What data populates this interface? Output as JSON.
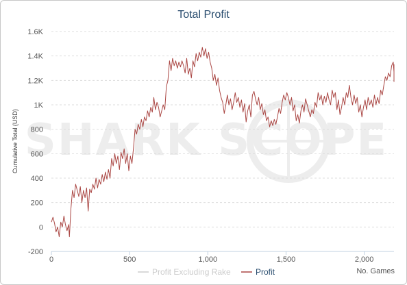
{
  "chart_data": {
    "type": "line",
    "title": "Total Profit",
    "xlabel": "No. Games",
    "ylabel": "Cumulative Total (USD)",
    "xlim": [
      0,
      2190
    ],
    "ylim": [
      -200,
      1600
    ],
    "x_ticks": [
      {
        "value": 0,
        "label": "0"
      },
      {
        "value": 500,
        "label": "500"
      },
      {
        "value": 1000,
        "label": "1,000"
      },
      {
        "value": 1500,
        "label": "1,500"
      },
      {
        "value": 2000,
        "label": "2,000"
      }
    ],
    "y_ticks": [
      {
        "value": -200,
        "label": "-200"
      },
      {
        "value": 0,
        "label": "0"
      },
      {
        "value": 200,
        "label": "200"
      },
      {
        "value": 400,
        "label": "400"
      },
      {
        "value": 600,
        "label": "600"
      },
      {
        "value": 800,
        "label": "800"
      },
      {
        "value": 1000,
        "label": "1K"
      },
      {
        "value": 1200,
        "label": "1.2K"
      },
      {
        "value": 1400,
        "label": "1.4K"
      },
      {
        "value": 1600,
        "label": "1.6K"
      }
    ],
    "grid": "horizontal dashed",
    "legend_position": "bottom-center",
    "watermark": "SHARK SCOPE",
    "series": [
      {
        "name": "Profit Excluding Rake",
        "color": "#cccccc",
        "visible": false,
        "points": []
      },
      {
        "name": "Profit",
        "color": "#aa4643",
        "visible": true,
        "points": [
          [
            0,
            40
          ],
          [
            10,
            80
          ],
          [
            20,
            30
          ],
          [
            30,
            -40
          ],
          [
            40,
            0
          ],
          [
            50,
            -80
          ],
          [
            60,
            40
          ],
          [
            70,
            0
          ],
          [
            80,
            90
          ],
          [
            90,
            20
          ],
          [
            100,
            -30
          ],
          [
            110,
            20
          ],
          [
            115,
            -80
          ],
          [
            125,
            150
          ],
          [
            135,
            300
          ],
          [
            145,
            240
          ],
          [
            155,
            350
          ],
          [
            165,
            300
          ],
          [
            175,
            250
          ],
          [
            185,
            330
          ],
          [
            195,
            200
          ],
          [
            205,
            300
          ],
          [
            215,
            240
          ],
          [
            225,
            320
          ],
          [
            235,
            130
          ],
          [
            245,
            310
          ],
          [
            255,
            280
          ],
          [
            265,
            350
          ],
          [
            275,
            310
          ],
          [
            285,
            400
          ],
          [
            295,
            320
          ],
          [
            305,
            390
          ],
          [
            315,
            350
          ],
          [
            325,
            430
          ],
          [
            335,
            370
          ],
          [
            345,
            450
          ],
          [
            355,
            390
          ],
          [
            365,
            470
          ],
          [
            375,
            400
          ],
          [
            385,
            560
          ],
          [
            395,
            500
          ],
          [
            405,
            600
          ],
          [
            415,
            520
          ],
          [
            425,
            580
          ],
          [
            435,
            470
          ],
          [
            445,
            610
          ],
          [
            455,
            560
          ],
          [
            465,
            640
          ],
          [
            475,
            520
          ],
          [
            485,
            600
          ],
          [
            495,
            460
          ],
          [
            505,
            580
          ],
          [
            515,
            520
          ],
          [
            525,
            650
          ],
          [
            535,
            800
          ],
          [
            545,
            760
          ],
          [
            555,
            840
          ],
          [
            565,
            800
          ],
          [
            575,
            880
          ],
          [
            585,
            820
          ],
          [
            595,
            900
          ],
          [
            605,
            870
          ],
          [
            615,
            950
          ],
          [
            625,
            900
          ],
          [
            635,
            980
          ],
          [
            645,
            940
          ],
          [
            655,
            1060
          ],
          [
            665,
            960
          ],
          [
            675,
            1020
          ],
          [
            685,
            980
          ],
          [
            695,
            900
          ],
          [
            705,
            950
          ],
          [
            715,
            1000
          ],
          [
            725,
            960
          ],
          [
            735,
            1150
          ],
          [
            745,
            1200
          ],
          [
            755,
            1360
          ],
          [
            765,
            1280
          ],
          [
            775,
            1380
          ],
          [
            785,
            1320
          ],
          [
            795,
            1360
          ],
          [
            805,
            1300
          ],
          [
            815,
            1350
          ],
          [
            825,
            1310
          ],
          [
            835,
            1360
          ],
          [
            845,
            1320
          ],
          [
            855,
            1260
          ],
          [
            865,
            1380
          ],
          [
            875,
            1250
          ],
          [
            885,
            1300
          ],
          [
            895,
            1220
          ],
          [
            905,
            1360
          ],
          [
            915,
            1310
          ],
          [
            925,
            1420
          ],
          [
            935,
            1360
          ],
          [
            945,
            1430
          ],
          [
            955,
            1390
          ],
          [
            965,
            1470
          ],
          [
            975,
            1400
          ],
          [
            985,
            1460
          ],
          [
            995,
            1380
          ],
          [
            1005,
            1430
          ],
          [
            1015,
            1350
          ],
          [
            1025,
            1300
          ],
          [
            1035,
            1200
          ],
          [
            1045,
            1250
          ],
          [
            1055,
            1160
          ],
          [
            1065,
            1220
          ],
          [
            1075,
            1120
          ],
          [
            1085,
            1060
          ],
          [
            1095,
            1020
          ],
          [
            1105,
            930
          ],
          [
            1115,
            1000
          ],
          [
            1125,
            1080
          ],
          [
            1135,
            1000
          ],
          [
            1145,
            1050
          ],
          [
            1155,
            960
          ],
          [
            1165,
            1020
          ],
          [
            1175,
            1100
          ],
          [
            1185,
            1020
          ],
          [
            1195,
            1060
          ],
          [
            1205,
            980
          ],
          [
            1215,
            1040
          ],
          [
            1225,
            940
          ],
          [
            1235,
            1010
          ],
          [
            1245,
            860
          ],
          [
            1255,
            950
          ],
          [
            1265,
            1000
          ],
          [
            1275,
            900
          ],
          [
            1285,
            1080
          ],
          [
            1295,
            1110
          ],
          [
            1305,
            1050
          ],
          [
            1315,
            1000
          ],
          [
            1325,
            1060
          ],
          [
            1335,
            960
          ],
          [
            1345,
            1010
          ],
          [
            1355,
            920
          ],
          [
            1365,
            960
          ],
          [
            1375,
            870
          ],
          [
            1385,
            900
          ],
          [
            1395,
            820
          ],
          [
            1405,
            870
          ],
          [
            1415,
            830
          ],
          [
            1425,
            880
          ],
          [
            1435,
            840
          ],
          [
            1445,
            900
          ],
          [
            1455,
            970
          ],
          [
            1465,
            930
          ],
          [
            1475,
            1020
          ],
          [
            1485,
            1080
          ],
          [
            1495,
            1040
          ],
          [
            1505,
            1100
          ],
          [
            1515,
            1060
          ],
          [
            1525,
            1000
          ],
          [
            1535,
            1060
          ],
          [
            1545,
            950
          ],
          [
            1555,
            1000
          ],
          [
            1565,
            870
          ],
          [
            1575,
            920
          ],
          [
            1585,
            850
          ],
          [
            1595,
            950
          ],
          [
            1605,
            1000
          ],
          [
            1615,
            940
          ],
          [
            1625,
            1050
          ],
          [
            1635,
            1000
          ],
          [
            1645,
            950
          ],
          [
            1655,
            900
          ],
          [
            1665,
            960
          ],
          [
            1675,
            930
          ],
          [
            1685,
            1020
          ],
          [
            1695,
            980
          ],
          [
            1705,
            1100
          ],
          [
            1715,
            1040
          ],
          [
            1725,
            1080
          ],
          [
            1735,
            1000
          ],
          [
            1745,
            1070
          ],
          [
            1755,
            1020
          ],
          [
            1765,
            1100
          ],
          [
            1775,
            1040
          ],
          [
            1785,
            1000
          ],
          [
            1795,
            1120
          ],
          [
            1805,
            1060
          ],
          [
            1815,
            1100
          ],
          [
            1825,
            960
          ],
          [
            1835,
            1040
          ],
          [
            1845,
            920
          ],
          [
            1855,
            980
          ],
          [
            1865,
            1060
          ],
          [
            1875,
            1000
          ],
          [
            1885,
            1100
          ],
          [
            1895,
            1060
          ],
          [
            1905,
            1160
          ],
          [
            1915,
            1060
          ],
          [
            1925,
            1000
          ],
          [
            1935,
            1080
          ],
          [
            1945,
            1010
          ],
          [
            1955,
            1060
          ],
          [
            1965,
            940
          ],
          [
            1975,
            1000
          ],
          [
            1985,
            900
          ],
          [
            1995,
            980
          ],
          [
            2005,
            1040
          ],
          [
            2015,
            960
          ],
          [
            2025,
            1060
          ],
          [
            2035,
            1000
          ],
          [
            2045,
            1040
          ],
          [
            2055,
            980
          ],
          [
            2065,
            1080
          ],
          [
            2075,
            1000
          ],
          [
            2085,
            1060
          ],
          [
            2095,
            1010
          ],
          [
            2105,
            1120
          ],
          [
            2115,
            1080
          ],
          [
            2125,
            1160
          ],
          [
            2135,
            1230
          ],
          [
            2145,
            1200
          ],
          [
            2155,
            1260
          ],
          [
            2165,
            1230
          ],
          [
            2175,
            1320
          ],
          [
            2185,
            1350
          ],
          [
            2195,
            1270
          ],
          [
            2205,
            1330
          ],
          [
            2215,
            1190
          ],
          [
            2225,
            1250
          ],
          [
            2235,
            1320
          ]
        ]
      }
    ]
  }
}
